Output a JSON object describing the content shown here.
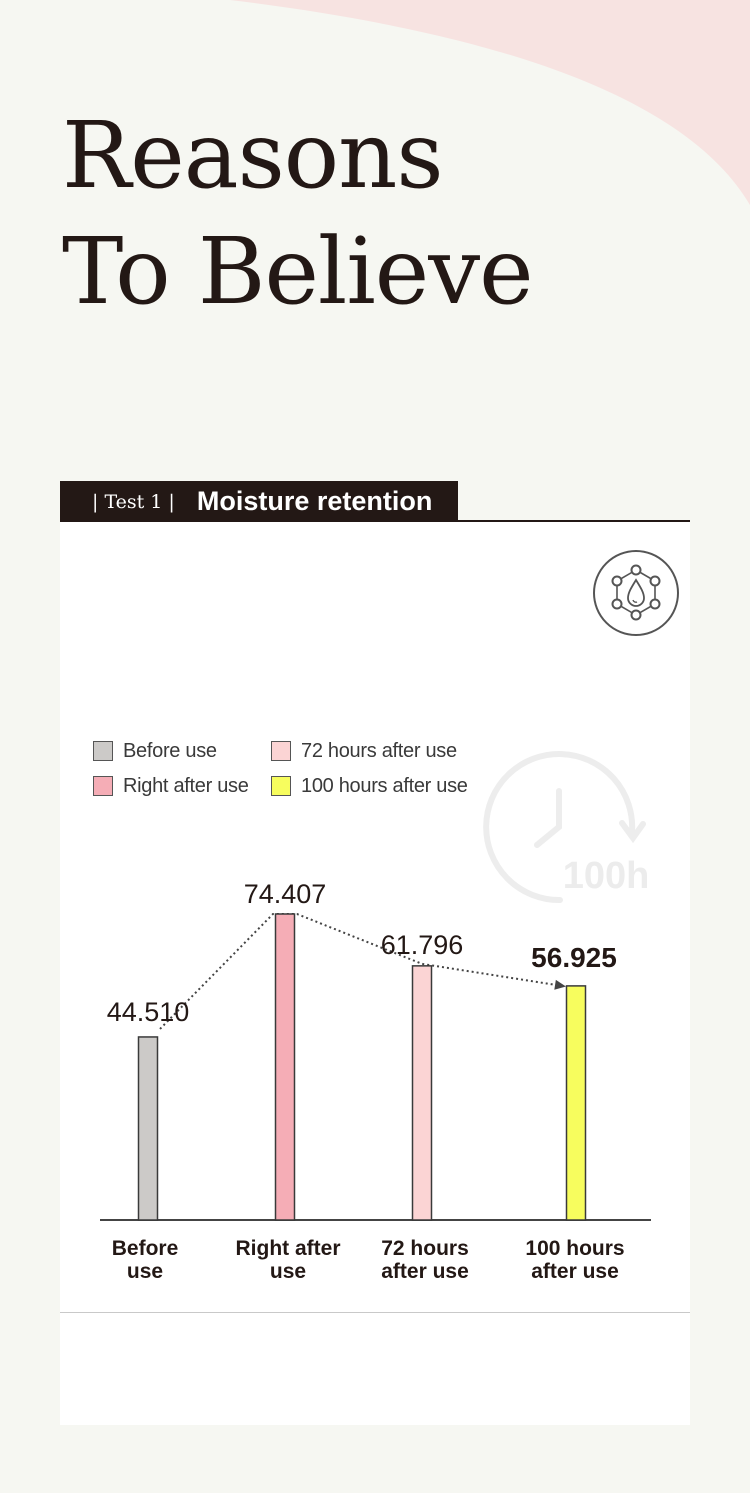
{
  "hero": {
    "line1": "Reasons",
    "line2": "To Believe"
  },
  "section": {
    "tag": "| Test 1 |",
    "title": "Moisture retention"
  },
  "badge_text": "100h",
  "icons": {
    "moisture": "water-molecule-icon",
    "clock": "clock-100h-icon"
  },
  "colors": {
    "background": "#f6f7f2",
    "accent_blob": "#f7e3e1",
    "before_use": "#cccac8",
    "right_after_use": "#f5adb6",
    "hours_72": "#fbd4d4",
    "hours_100": "#f7fd5e"
  },
  "chart_data": {
    "type": "bar",
    "categories": [
      "Before\nuse",
      "Right after\nuse",
      "72 hours\nafter use",
      "100 hours\nafter use"
    ],
    "values": [
      44.51,
      74.407,
      61.796,
      56.925
    ],
    "value_labels": [
      "44.510",
      "74.407",
      "61.796",
      "56.925"
    ],
    "legend": [
      "Before use",
      "Right after use",
      "72 hours after use",
      "100 hours after use"
    ],
    "ylim": [
      0,
      80
    ],
    "title": "",
    "xlabel": "",
    "ylabel": "",
    "grid": false,
    "legend_placement": "top-left",
    "trend_line": "dotted arrow connecting bar tops"
  }
}
